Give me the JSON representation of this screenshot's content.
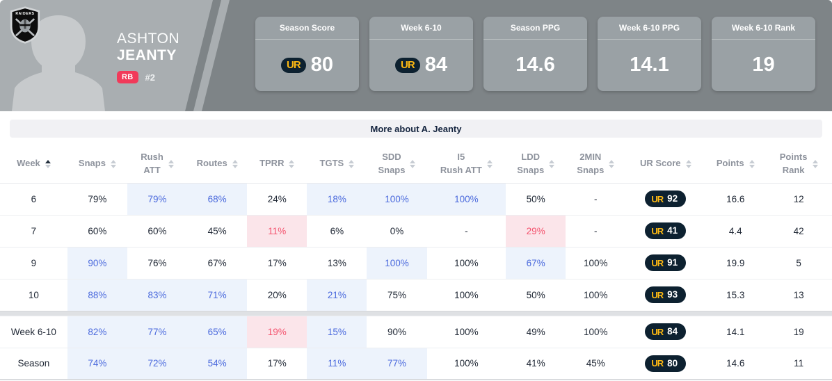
{
  "player": {
    "first_name": "ASHTON",
    "last_name": "JEANTY",
    "position": "RB",
    "jersey_number": "#2",
    "team_logo": "raiders-shield-icon",
    "team_logo_text": "RAIDERS"
  },
  "stat_cards": [
    {
      "label": "Season Score",
      "value": "80",
      "has_ur_logo": true
    },
    {
      "label": "Week 6-10",
      "value": "84",
      "has_ur_logo": true
    },
    {
      "label": "Season PPG",
      "value": "14.6",
      "has_ur_logo": false
    },
    {
      "label": "Week 6-10 PPG",
      "value": "14.1",
      "has_ur_logo": false
    },
    {
      "label": "Week 6-10 Rank",
      "value": "19",
      "has_ur_logo": false
    }
  ],
  "ur_logo_text": "UR",
  "more_bar": {
    "label": "More about A. Jeanty"
  },
  "table": {
    "columns": [
      {
        "key": "week",
        "lines": [
          "Week"
        ],
        "sort": "asc"
      },
      {
        "key": "snaps",
        "lines": [
          "Snaps"
        ],
        "sort": "none"
      },
      {
        "key": "rush-att",
        "lines": [
          "Rush",
          "ATT"
        ],
        "sort": "none"
      },
      {
        "key": "routes",
        "lines": [
          "Routes"
        ],
        "sort": "none"
      },
      {
        "key": "tprr",
        "lines": [
          "TPRR"
        ],
        "sort": "none"
      },
      {
        "key": "tgts",
        "lines": [
          "TGTS"
        ],
        "sort": "none"
      },
      {
        "key": "sdd-snaps",
        "lines": [
          "SDD",
          "Snaps"
        ],
        "sort": "none"
      },
      {
        "key": "i5-rush-att",
        "lines": [
          "I5",
          "Rush ATT"
        ],
        "sort": "none"
      },
      {
        "key": "ldd-snaps",
        "lines": [
          "LDD",
          "Snaps"
        ],
        "sort": "none"
      },
      {
        "key": "2min-snaps",
        "lines": [
          "2MIN",
          "Snaps"
        ],
        "sort": "none"
      },
      {
        "key": "ur-score",
        "lines": [
          "UR Score"
        ],
        "sort": "none"
      },
      {
        "key": "points",
        "lines": [
          "Points"
        ],
        "sort": "none"
      },
      {
        "key": "points-rank",
        "lines": [
          "Points",
          "Rank"
        ],
        "sort": "none"
      }
    ],
    "col_widths_pct": [
      8.1,
      7.2,
      7.2,
      7.2,
      7.2,
      7.2,
      7.2,
      9.5,
      7.2,
      7.2,
      9.6,
      7.2,
      8.0
    ],
    "rows": [
      {
        "cells": [
          {
            "v": "6"
          },
          {
            "v": "79%"
          },
          {
            "v": "79%",
            "hl": "blue"
          },
          {
            "v": "68%",
            "hl": "blue"
          },
          {
            "v": "24%"
          },
          {
            "v": "18%",
            "hl": "blue"
          },
          {
            "v": "100%",
            "hl": "blue"
          },
          {
            "v": "100%",
            "hl": "blue"
          },
          {
            "v": "50%"
          },
          {
            "v": "-"
          },
          {
            "type": "ur",
            "v": "92"
          },
          {
            "v": "16.6"
          },
          {
            "v": "12"
          }
        ]
      },
      {
        "cells": [
          {
            "v": "7"
          },
          {
            "v": "60%"
          },
          {
            "v": "60%"
          },
          {
            "v": "45%"
          },
          {
            "v": "11%",
            "hl": "red"
          },
          {
            "v": "6%"
          },
          {
            "v": "0%"
          },
          {
            "v": "-"
          },
          {
            "v": "29%",
            "hl": "red"
          },
          {
            "v": "-"
          },
          {
            "type": "ur",
            "v": "41"
          },
          {
            "v": "4.4"
          },
          {
            "v": "42"
          }
        ]
      },
      {
        "cells": [
          {
            "v": "9"
          },
          {
            "v": "90%",
            "hl": "blue"
          },
          {
            "v": "76%"
          },
          {
            "v": "67%"
          },
          {
            "v": "17%"
          },
          {
            "v": "13%"
          },
          {
            "v": "100%",
            "hl": "blue"
          },
          {
            "v": "100%"
          },
          {
            "v": "67%",
            "hl": "blue"
          },
          {
            "v": "100%"
          },
          {
            "type": "ur",
            "v": "91"
          },
          {
            "v": "19.9"
          },
          {
            "v": "5"
          }
        ]
      },
      {
        "cells": [
          {
            "v": "10"
          },
          {
            "v": "88%",
            "hl": "blue"
          },
          {
            "v": "83%",
            "hl": "blue"
          },
          {
            "v": "71%",
            "hl": "blue"
          },
          {
            "v": "20%"
          },
          {
            "v": "21%",
            "hl": "blue"
          },
          {
            "v": "75%"
          },
          {
            "v": "100%"
          },
          {
            "v": "50%"
          },
          {
            "v": "100%"
          },
          {
            "type": "ur",
            "v": "93"
          },
          {
            "v": "15.3"
          },
          {
            "v": "13"
          }
        ]
      }
    ],
    "summary_rows": [
      {
        "cells": [
          {
            "v": "Week 6-10"
          },
          {
            "v": "82%",
            "hl": "blue"
          },
          {
            "v": "77%",
            "hl": "blue"
          },
          {
            "v": "65%",
            "hl": "blue"
          },
          {
            "v": "19%",
            "hl": "red"
          },
          {
            "v": "15%",
            "hl": "blue"
          },
          {
            "v": "90%"
          },
          {
            "v": "100%"
          },
          {
            "v": "49%"
          },
          {
            "v": "100%"
          },
          {
            "type": "ur",
            "v": "84"
          },
          {
            "v": "14.1"
          },
          {
            "v": "19"
          }
        ]
      },
      {
        "cells": [
          {
            "v": "Season"
          },
          {
            "v": "74%",
            "hl": "blue"
          },
          {
            "v": "72%",
            "hl": "blue"
          },
          {
            "v": "54%",
            "hl": "blue"
          },
          {
            "v": "17%"
          },
          {
            "v": "11%",
            "hl": "blue"
          },
          {
            "v": "77%",
            "hl": "blue"
          },
          {
            "v": "100%"
          },
          {
            "v": "41%"
          },
          {
            "v": "45%"
          },
          {
            "type": "ur",
            "v": "80"
          },
          {
            "v": "14.6"
          },
          {
            "v": "11"
          }
        ]
      }
    ]
  },
  "colors": {
    "header_light_gray": "#a9aeb1",
    "header_dark_gray": "#7e8487",
    "silhouette_gray": "#c7cacc",
    "card_gray": "#9aa1a5",
    "ur_navy": "#0d2130",
    "ur_yellow": "#fdb913",
    "position_badge_red": "#f13a5a",
    "cell_blue_text": "#4b6add",
    "cell_blue_bg": "#edf3fc",
    "cell_red_text": "#f4536e",
    "cell_red_bg": "#fbe5ea"
  }
}
